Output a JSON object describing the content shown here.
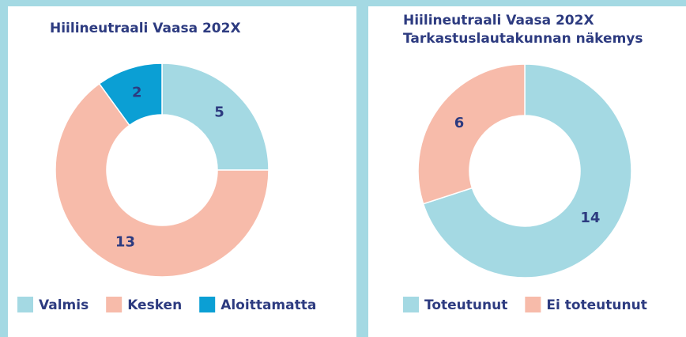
{
  "chart_data": [
    {
      "type": "pie",
      "donut": true,
      "title": "Hiilineutraali Vaasa 202X",
      "categories": [
        "Valmis",
        "Kesken",
        "Aloittamatta"
      ],
      "values": [
        5,
        13,
        2
      ],
      "colors": [
        "#a4d9e3",
        "#f7bbaa",
        "#0b9fd4"
      ],
      "legend": "bottom"
    },
    {
      "type": "pie",
      "donut": true,
      "title": "Hiilineutraali Vaasa 202X",
      "subtitle": "Tarkastuslautakunnan näkemys",
      "categories": [
        "Toteutunut",
        "Ei toteutunut"
      ],
      "values": [
        14,
        6
      ],
      "colors": [
        "#a4d9e3",
        "#f7bbaa"
      ],
      "legend": "bottom"
    }
  ]
}
